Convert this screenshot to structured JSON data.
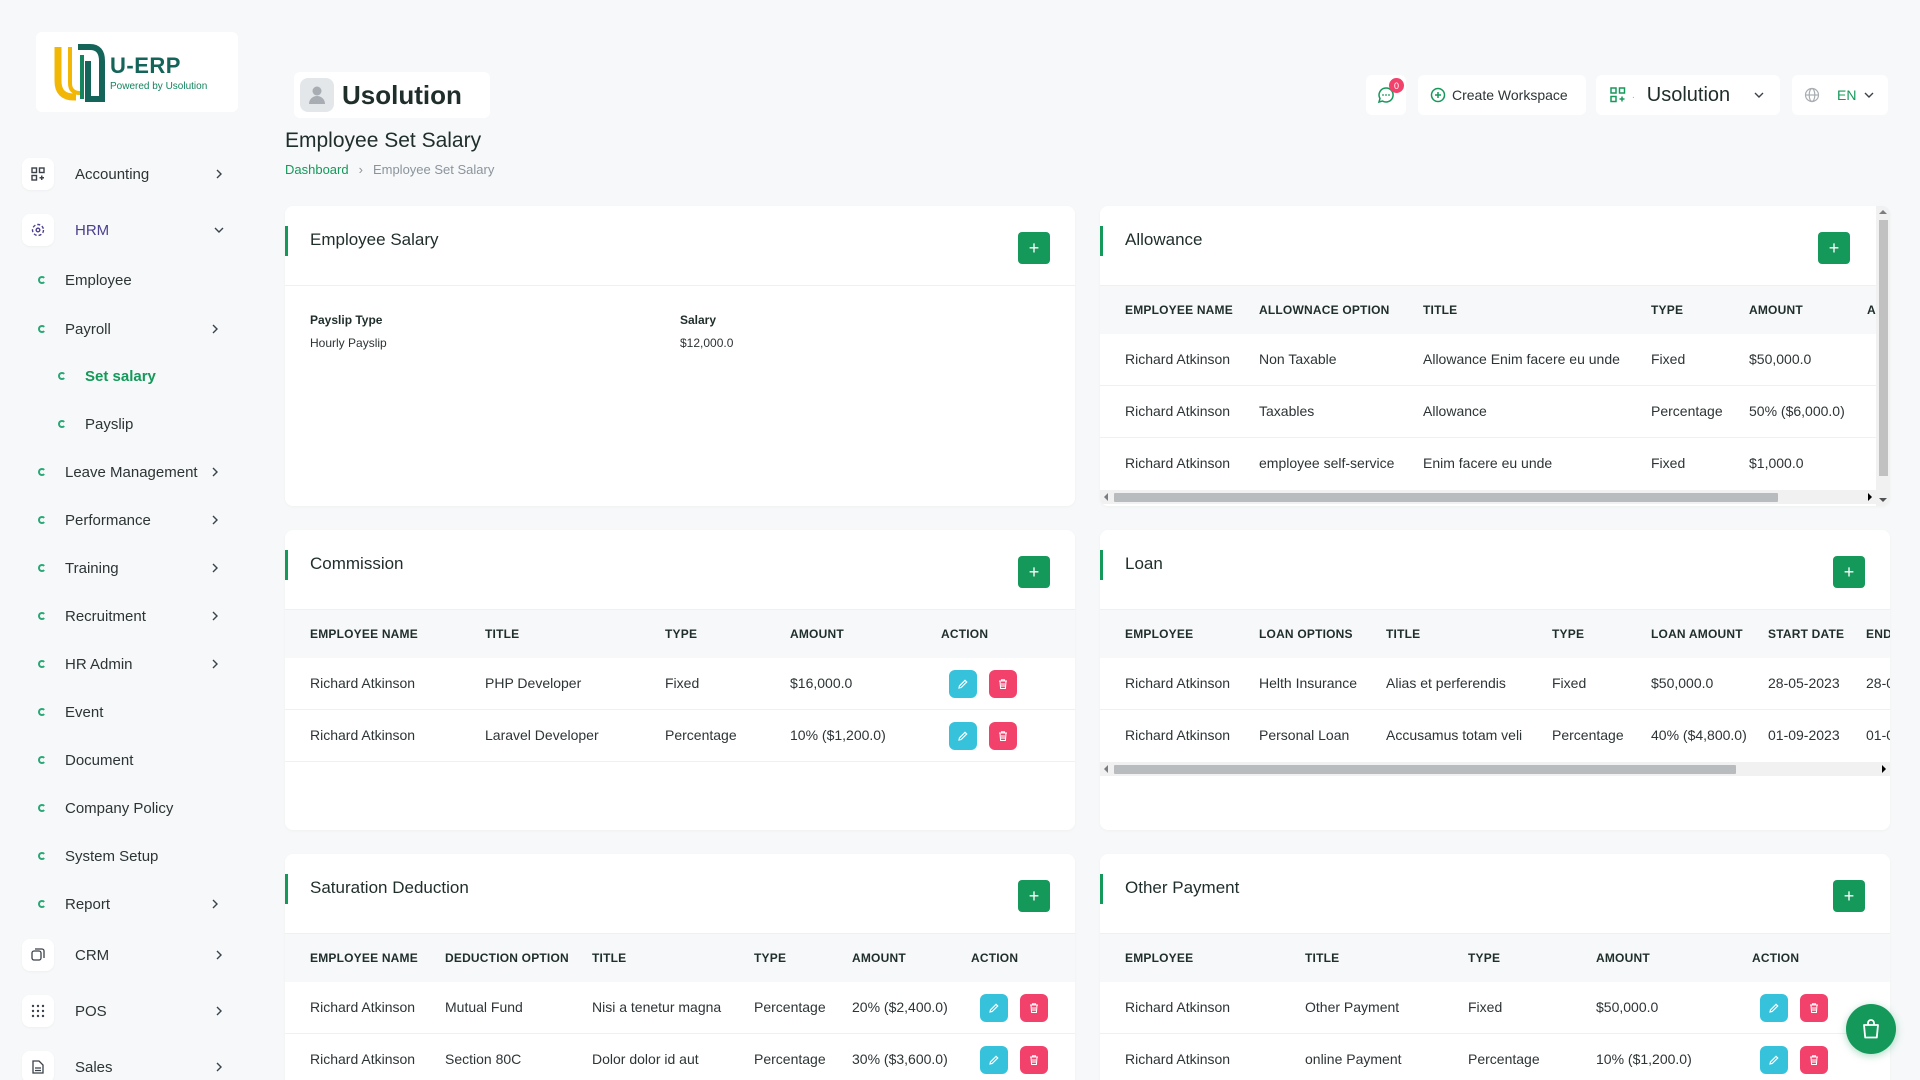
{
  "brand": {
    "logo_title": "U-ERP",
    "logo_sub": "Powered by Usolution",
    "name": "Usolution"
  },
  "header": {
    "notification_count": "0",
    "create_workspace": "Create Workspace",
    "workspace": "Usolution",
    "language": "EN"
  },
  "sidebar": {
    "items": [
      {
        "label": "Accounting"
      },
      {
        "label": "HRM"
      },
      {
        "label": "CRM"
      },
      {
        "label": "POS"
      },
      {
        "label": "Sales"
      }
    ],
    "hrm_sub": [
      {
        "label": "Employee"
      },
      {
        "label": "Payroll"
      },
      {
        "label": "Set salary"
      },
      {
        "label": "Payslip"
      },
      {
        "label": "Leave Management"
      },
      {
        "label": "Performance"
      },
      {
        "label": "Training"
      },
      {
        "label": "Recruitment"
      },
      {
        "label": "HR Admin"
      },
      {
        "label": "Event"
      },
      {
        "label": "Document"
      },
      {
        "label": "Company Policy"
      },
      {
        "label": "System Setup"
      },
      {
        "label": "Report"
      }
    ]
  },
  "page": {
    "title": "Employee Set Salary",
    "breadcrumb": {
      "home": "Dashboard",
      "current": "Employee Set Salary"
    }
  },
  "employee_salary": {
    "title": "Employee Salary",
    "payslip_type_label": "Payslip Type",
    "payslip_type_value": "Hourly Payslip",
    "salary_label": "Salary",
    "salary_value": "$12,000.0"
  },
  "allowance": {
    "title": "Allowance",
    "headers": [
      "EMPLOYEE NAME",
      "ALLOWNACE OPTION",
      "TITLE",
      "TYPE",
      "AMOUNT",
      "A"
    ],
    "rows": [
      [
        "Richard Atkinson",
        "Non Taxable",
        "Allowance Enim facere eu unde",
        "Fixed",
        "$50,000.0"
      ],
      [
        "Richard Atkinson",
        "Taxables",
        "Allowance",
        "Percentage",
        "50% ($6,000.0)"
      ],
      [
        "Richard Atkinson",
        "employee self-service",
        "Enim facere eu unde",
        "Fixed",
        "$1,000.0"
      ]
    ]
  },
  "commission": {
    "title": "Commission",
    "headers": [
      "EMPLOYEE NAME",
      "TITLE",
      "TYPE",
      "AMOUNT",
      "ACTION"
    ],
    "rows": [
      [
        "Richard Atkinson",
        "PHP Developer",
        "Fixed",
        "$16,000.0"
      ],
      [
        "Richard Atkinson",
        "Laravel Developer",
        "Percentage",
        "10% ($1,200.0)"
      ]
    ]
  },
  "loan": {
    "title": "Loan",
    "headers": [
      "EMPLOYEE",
      "LOAN OPTIONS",
      "TITLE",
      "TYPE",
      "LOAN AMOUNT",
      "START DATE",
      "END"
    ],
    "rows": [
      [
        "Richard Atkinson",
        "Helth Insurance",
        "Alias et perferendis",
        "Fixed",
        "$50,000.0",
        "28-05-2023",
        "28-0"
      ],
      [
        "Richard Atkinson",
        "Personal Loan",
        "Accusamus totam veli",
        "Percentage",
        "40% ($4,800.0)",
        "01-09-2023",
        "01-0"
      ]
    ]
  },
  "deduction": {
    "title": "Saturation Deduction",
    "headers": [
      "EMPLOYEE NAME",
      "DEDUCTION OPTION",
      "TITLE",
      "TYPE",
      "AMOUNT",
      "ACTION"
    ],
    "rows": [
      [
        "Richard Atkinson",
        "Mutual Fund",
        "Nisi a tenetur magna",
        "Percentage",
        "20% ($2,400.0)"
      ],
      [
        "Richard Atkinson",
        "Section 80C",
        "Dolor dolor id aut",
        "Percentage",
        "30% ($3,600.0)"
      ]
    ]
  },
  "other_payment": {
    "title": "Other Payment",
    "headers": [
      "EMPLOYEE",
      "TITLE",
      "TYPE",
      "AMOUNT",
      "ACTION"
    ],
    "rows": [
      [
        "Richard Atkinson",
        "Other Payment",
        "Fixed",
        "$50,000.0"
      ],
      [
        "Richard Atkinson",
        "online Payment",
        "Percentage",
        "10% ($1,200.0)"
      ]
    ]
  },
  "colors": {
    "primary": "#14995a",
    "edit": "#37c2dc",
    "delete": "#f2416b",
    "badge": "#f2416b"
  }
}
